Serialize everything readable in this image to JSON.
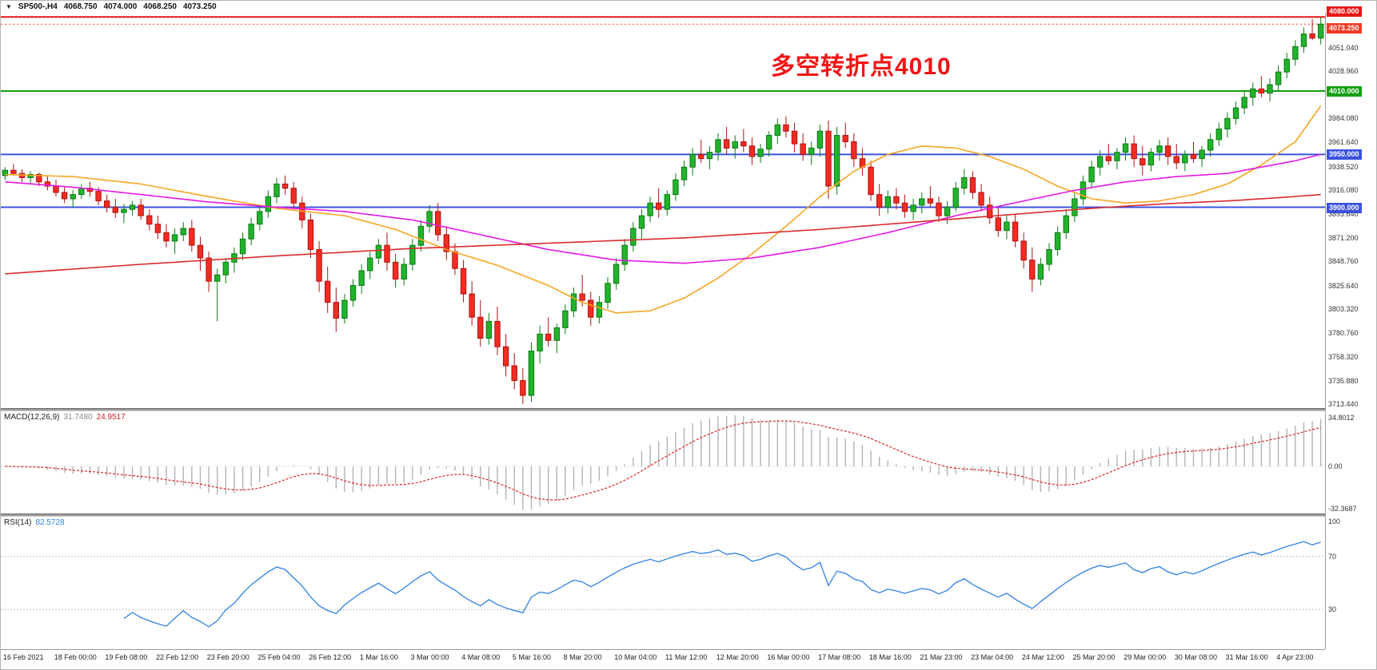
{
  "header": {
    "dropdown_icon": "▼",
    "symbol_period": "SP500-,H4",
    "open": "4068.750",
    "high": "4074.000",
    "low": "4068.250",
    "close": "4073.250"
  },
  "annotation": {
    "text": "多空转折点4010",
    "color": "#f21414"
  },
  "chart_data": {
    "type": "candlestick",
    "symbol": "SP500-",
    "timeframe": "H4",
    "title": "SP500- H4 candlestick chart with MACD and RSI",
    "price_axis": {
      "min": 3710,
      "max": 4084,
      "ticks": [
        "4051.040",
        "4028.960",
        "3984.080",
        "3961.640",
        "3938.520",
        "3916.080",
        "3893.640",
        "3871.200",
        "3848.760",
        "3825.640",
        "3803.320",
        "3780.760",
        "3758.320",
        "3735.880",
        "3713.440"
      ]
    },
    "hlines": [
      {
        "price": 4080.0,
        "label": "4080.000",
        "color": "#e81717"
      },
      {
        "price": 4010.0,
        "label": "4010.000",
        "color": "#11a011"
      },
      {
        "price": 3950.0,
        "label": "3950.000",
        "color": "#3c53e0"
      },
      {
        "price": 3900.0,
        "label": "3900.000",
        "color": "#3c53e0"
      }
    ],
    "current_price": {
      "value": 4073.25,
      "label": "4073.250",
      "color": "#ef3b24"
    },
    "colors": {
      "bull": "#21b32b",
      "bull_edge": "#0d7a16",
      "bear": "#f22c22",
      "bear_edge": "#b31111",
      "macd_bar": "#b3b3b3",
      "macd_signal": "#e02020",
      "rsi_line": "#2f80e0",
      "rsi_level": "#bbbbbb"
    },
    "x_labels": [
      "16 Feb 2021",
      "18 Feb 00:00",
      "19 Feb 08:00",
      "22 Feb 12:00",
      "23 Feb 20:00",
      "25 Feb 04:00",
      "26 Feb 12:00",
      "1 Mar 16:00",
      "3 Mar 00:00",
      "4 Mar 08:00",
      "5 Mar 16:00",
      "8 Mar 20:00",
      "10 Mar 04:00",
      "11 Mar 12:00",
      "12 Mar 20:00",
      "16 Mar 00:00",
      "17 Mar 08:00",
      "18 Mar 16:00",
      "21 Mar 23:00",
      "23 Mar 04:00",
      "24 Mar 12:00",
      "25 Mar 20:00",
      "29 Mar 00:00",
      "30 Mar 08:00",
      "31 Mar 16:00",
      "4 Apr 23:00"
    ],
    "candles": [
      [
        3930,
        3938,
        3926,
        3935
      ],
      [
        3935,
        3941,
        3930,
        3932
      ],
      [
        3932,
        3936,
        3924,
        3928
      ],
      [
        3928,
        3934,
        3922,
        3931
      ],
      [
        3931,
        3933,
        3920,
        3924
      ],
      [
        3924,
        3930,
        3916,
        3920
      ],
      [
        3920,
        3926,
        3910,
        3914
      ],
      [
        3914,
        3920,
        3904,
        3908
      ],
      [
        3908,
        3916,
        3900,
        3912
      ],
      [
        3912,
        3922,
        3908,
        3918
      ],
      [
        3918,
        3924,
        3910,
        3915
      ],
      [
        3915,
        3919,
        3902,
        3906
      ],
      [
        3906,
        3912,
        3895,
        3900
      ],
      [
        3900,
        3908,
        3890,
        3895
      ],
      [
        3895,
        3903,
        3885,
        3898
      ],
      [
        3898,
        3906,
        3892,
        3902
      ],
      [
        3902,
        3908,
        3888,
        3892
      ],
      [
        3892,
        3898,
        3878,
        3884
      ],
      [
        3884,
        3892,
        3870,
        3876
      ],
      [
        3876,
        3884,
        3862,
        3868
      ],
      [
        3868,
        3880,
        3856,
        3874
      ],
      [
        3874,
        3886,
        3868,
        3880
      ],
      [
        3880,
        3888,
        3858,
        3864
      ],
      [
        3864,
        3872,
        3840,
        3852
      ],
      [
        3852,
        3858,
        3820,
        3830
      ],
      [
        3830,
        3842,
        3792,
        3836
      ],
      [
        3836,
        3852,
        3828,
        3848
      ],
      [
        3848,
        3862,
        3838,
        3856
      ],
      [
        3856,
        3876,
        3850,
        3870
      ],
      [
        3870,
        3890,
        3864,
        3884
      ],
      [
        3884,
        3902,
        3878,
        3896
      ],
      [
        3896,
        3916,
        3890,
        3910
      ],
      [
        3910,
        3928,
        3904,
        3922
      ],
      [
        3922,
        3930,
        3912,
        3918
      ],
      [
        3918,
        3924,
        3898,
        3904
      ],
      [
        3904,
        3910,
        3880,
        3888
      ],
      [
        3888,
        3894,
        3852,
        3860
      ],
      [
        3860,
        3868,
        3820,
        3830
      ],
      [
        3830,
        3844,
        3800,
        3810
      ],
      [
        3810,
        3824,
        3782,
        3795
      ],
      [
        3795,
        3818,
        3790,
        3812
      ],
      [
        3812,
        3832,
        3806,
        3826
      ],
      [
        3826,
        3846,
        3818,
        3840
      ],
      [
        3840,
        3858,
        3832,
        3852
      ],
      [
        3852,
        3870,
        3846,
        3864
      ],
      [
        3864,
        3876,
        3840,
        3848
      ],
      [
        3848,
        3856,
        3824,
        3832
      ],
      [
        3832,
        3852,
        3826,
        3846
      ],
      [
        3846,
        3870,
        3840,
        3864
      ],
      [
        3864,
        3888,
        3858,
        3882
      ],
      [
        3882,
        3902,
        3876,
        3896
      ],
      [
        3896,
        3904,
        3868,
        3874
      ],
      [
        3874,
        3882,
        3850,
        3858
      ],
      [
        3858,
        3866,
        3836,
        3842
      ],
      [
        3842,
        3850,
        3810,
        3818
      ],
      [
        3818,
        3830,
        3788,
        3796
      ],
      [
        3796,
        3812,
        3768,
        3776
      ],
      [
        3776,
        3800,
        3770,
        3792
      ],
      [
        3792,
        3806,
        3760,
        3768
      ],
      [
        3768,
        3780,
        3740,
        3750
      ],
      [
        3750,
        3762,
        3728,
        3736
      ],
      [
        3736,
        3748,
        3714,
        3722
      ],
      [
        3722,
        3772,
        3716,
        3764
      ],
      [
        3764,
        3788,
        3752,
        3780
      ],
      [
        3780,
        3796,
        3768,
        3774
      ],
      [
        3774,
        3790,
        3762,
        3786
      ],
      [
        3786,
        3808,
        3780,
        3802
      ],
      [
        3802,
        3824,
        3796,
        3818
      ],
      [
        3818,
        3836,
        3806,
        3812
      ],
      [
        3812,
        3820,
        3788,
        3796
      ],
      [
        3796,
        3816,
        3790,
        3810
      ],
      [
        3810,
        3834,
        3804,
        3828
      ],
      [
        3828,
        3852,
        3822,
        3846
      ],
      [
        3846,
        3870,
        3840,
        3864
      ],
      [
        3864,
        3886,
        3858,
        3880
      ],
      [
        3880,
        3898,
        3870,
        3892
      ],
      [
        3892,
        3910,
        3886,
        3904
      ],
      [
        3904,
        3918,
        3890,
        3898
      ],
      [
        3898,
        3916,
        3892,
        3912
      ],
      [
        3912,
        3932,
        3906,
        3926
      ],
      [
        3926,
        3944,
        3920,
        3938
      ],
      [
        3938,
        3956,
        3930,
        3950
      ],
      [
        3950,
        3964,
        3942,
        3946
      ],
      [
        3946,
        3958,
        3936,
        3952
      ],
      [
        3952,
        3970,
        3944,
        3964
      ],
      [
        3964,
        3976,
        3950,
        3956
      ],
      [
        3956,
        3968,
        3946,
        3962
      ],
      [
        3962,
        3974,
        3952,
        3958
      ],
      [
        3958,
        3966,
        3940,
        3948
      ],
      [
        3948,
        3960,
        3942,
        3955
      ],
      [
        3955,
        3972,
        3948,
        3968
      ],
      [
        3968,
        3984,
        3960,
        3978
      ],
      [
        3978,
        3986,
        3966,
        3972
      ],
      [
        3972,
        3980,
        3952,
        3960
      ],
      [
        3960,
        3970,
        3944,
        3950
      ],
      [
        3950,
        3962,
        3940,
        3956
      ],
      [
        3956,
        3978,
        3948,
        3972
      ],
      [
        3972,
        3982,
        3908,
        3920
      ],
      [
        3920,
        3976,
        3912,
        3968
      ],
      [
        3968,
        3980,
        3956,
        3962
      ],
      [
        3962,
        3970,
        3938,
        3946
      ],
      [
        3946,
        3956,
        3930,
        3938
      ],
      [
        3938,
        3944,
        3906,
        3912
      ],
      [
        3912,
        3922,
        3892,
        3900
      ],
      [
        3900,
        3916,
        3894,
        3910
      ],
      [
        3910,
        3918,
        3898,
        3904
      ],
      [
        3904,
        3912,
        3890,
        3896
      ],
      [
        3896,
        3908,
        3888,
        3902
      ],
      [
        3902,
        3914,
        3894,
        3908
      ],
      [
        3908,
        3920,
        3900,
        3904
      ],
      [
        3904,
        3910,
        3886,
        3892
      ],
      [
        3892,
        3906,
        3884,
        3900
      ],
      [
        3900,
        3924,
        3896,
        3918
      ],
      [
        3918,
        3936,
        3912,
        3928
      ],
      [
        3928,
        3934,
        3908,
        3914
      ],
      [
        3914,
        3922,
        3896,
        3902
      ],
      [
        3902,
        3910,
        3884,
        3890
      ],
      [
        3890,
        3900,
        3872,
        3878
      ],
      [
        3878,
        3892,
        3870,
        3886
      ],
      [
        3886,
        3894,
        3862,
        3868
      ],
      [
        3868,
        3876,
        3842,
        3850
      ],
      [
        3850,
        3862,
        3820,
        3832
      ],
      [
        3832,
        3852,
        3826,
        3846
      ],
      [
        3846,
        3866,
        3840,
        3860
      ],
      [
        3860,
        3882,
        3854,
        3876
      ],
      [
        3876,
        3898,
        3870,
        3892
      ],
      [
        3892,
        3914,
        3886,
        3908
      ],
      [
        3908,
        3930,
        3902,
        3924
      ],
      [
        3924,
        3944,
        3918,
        3938
      ],
      [
        3938,
        3954,
        3930,
        3948
      ],
      [
        3948,
        3960,
        3940,
        3944
      ],
      [
        3944,
        3956,
        3936,
        3952
      ],
      [
        3952,
        3966,
        3944,
        3960
      ],
      [
        3960,
        3968,
        3938,
        3946
      ],
      [
        3946,
        3958,
        3930,
        3940
      ],
      [
        3940,
        3956,
        3934,
        3952
      ],
      [
        3952,
        3964,
        3944,
        3958
      ],
      [
        3958,
        3966,
        3940,
        3948
      ],
      [
        3948,
        3960,
        3936,
        3942
      ],
      [
        3942,
        3954,
        3934,
        3950
      ],
      [
        3950,
        3962,
        3942,
        3946
      ],
      [
        3946,
        3958,
        3938,
        3954
      ],
      [
        3954,
        3970,
        3948,
        3964
      ],
      [
        3964,
        3980,
        3958,
        3974
      ],
      [
        3974,
        3990,
        3966,
        3984
      ],
      [
        3984,
        4000,
        3978,
        3994
      ],
      [
        3994,
        4010,
        3988,
        4004
      ],
      [
        4004,
        4018,
        3996,
        4012
      ],
      [
        4012,
        4024,
        4004,
        4008
      ],
      [
        4008,
        4022,
        4000,
        4016
      ],
      [
        4016,
        4034,
        4010,
        4028
      ],
      [
        4028,
        4046,
        4022,
        4040
      ],
      [
        4040,
        4058,
        4034,
        4052
      ],
      [
        4052,
        4070,
        4046,
        4064
      ],
      [
        4064,
        4078,
        4058,
        4060
      ],
      [
        4060,
        4080,
        4054,
        4073.25
      ]
    ],
    "ma_lines": [
      {
        "name": "ma-fast-orange",
        "color": "#f5a623",
        "width": 1.6,
        "points": [
          [
            0,
            3931
          ],
          [
            8,
            3929
          ],
          [
            16,
            3922
          ],
          [
            24,
            3910
          ],
          [
            32,
            3899
          ],
          [
            40,
            3892
          ],
          [
            46,
            3879
          ],
          [
            52,
            3860
          ],
          [
            58,
            3845
          ],
          [
            64,
            3826
          ],
          [
            68,
            3810
          ],
          [
            72,
            3800
          ],
          [
            76,
            3802
          ],
          [
            80,
            3814
          ],
          [
            84,
            3833
          ],
          [
            88,
            3856
          ],
          [
            92,
            3882
          ],
          [
            96,
            3910
          ],
          [
            100,
            3934
          ],
          [
            104,
            3950
          ],
          [
            108,
            3958
          ],
          [
            112,
            3956
          ],
          [
            116,
            3948
          ],
          [
            120,
            3936
          ],
          [
            124,
            3920
          ],
          [
            128,
            3908
          ],
          [
            132,
            3904
          ],
          [
            136,
            3906
          ],
          [
            140,
            3912
          ],
          [
            144,
            3922
          ],
          [
            148,
            3940
          ],
          [
            152,
            3962
          ],
          [
            155,
            3996
          ]
        ]
      },
      {
        "name": "ma-mid-magenta",
        "color": "#e519e5",
        "width": 1.6,
        "points": [
          [
            0,
            3924
          ],
          [
            8,
            3919
          ],
          [
            16,
            3912
          ],
          [
            24,
            3905
          ],
          [
            32,
            3900
          ],
          [
            40,
            3896
          ],
          [
            48,
            3888
          ],
          [
            56,
            3874
          ],
          [
            64,
            3860
          ],
          [
            72,
            3850
          ],
          [
            80,
            3847
          ],
          [
            88,
            3852
          ],
          [
            96,
            3862
          ],
          [
            104,
            3876
          ],
          [
            112,
            3892
          ],
          [
            120,
            3906
          ],
          [
            126,
            3916
          ],
          [
            132,
            3924
          ],
          [
            138,
            3929
          ],
          [
            144,
            3932
          ],
          [
            148,
            3938
          ],
          [
            152,
            3944
          ],
          [
            155,
            3950
          ]
        ]
      },
      {
        "name": "ma-slow-red",
        "color": "#d92b2b",
        "width": 1.6,
        "points": [
          [
            0,
            3837
          ],
          [
            16,
            3846
          ],
          [
            32,
            3854
          ],
          [
            48,
            3861
          ],
          [
            64,
            3866
          ],
          [
            80,
            3871
          ],
          [
            96,
            3879
          ],
          [
            112,
            3889
          ],
          [
            120,
            3894
          ],
          [
            128,
            3899
          ],
          [
            136,
            3903
          ],
          [
            144,
            3906
          ],
          [
            150,
            3909
          ],
          [
            155,
            3912
          ]
        ]
      }
    ],
    "macd": {
      "label": "MACD(12,26,9)",
      "main": "31.7480",
      "signal": "24.9517",
      "params": {
        "fast": 12,
        "slow": 26,
        "signal": 9
      },
      "axis": [
        "34.8012",
        "0.00",
        "-32.3687"
      ]
    },
    "rsi": {
      "label": "RSI(14)",
      "value": "82.5728",
      "period": 14,
      "levels": [
        70,
        30
      ],
      "axis": [
        "100",
        "70",
        "30"
      ]
    }
  }
}
